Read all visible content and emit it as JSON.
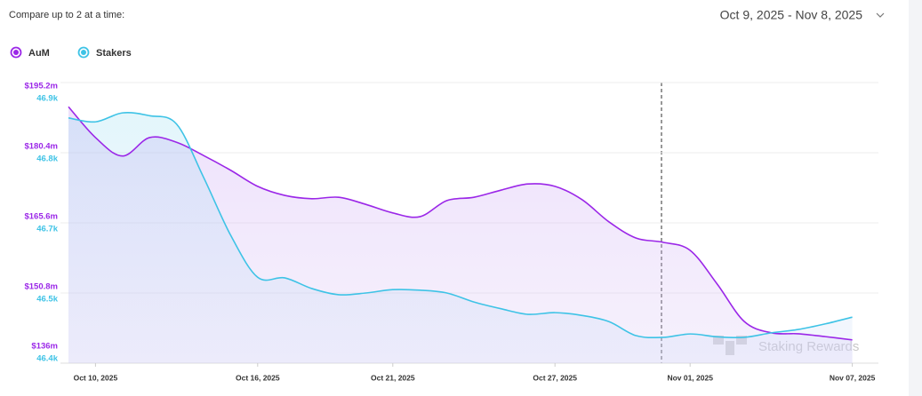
{
  "header": {
    "compare_note": "Compare up to 2 at a time:",
    "date_range": "Oct 9, 2025 - Nov 8, 2025"
  },
  "chart_data": {
    "type": "line",
    "watermark": "Staking Rewards",
    "categories": [
      null,
      "Oct 10, 2025",
      null,
      null,
      null,
      null,
      null,
      "Oct 16, 2025",
      null,
      null,
      null,
      null,
      "Oct 21, 2025",
      null,
      null,
      null,
      null,
      null,
      "Oct 27, 2025",
      null,
      null,
      null,
      null,
      "Nov 01, 2025",
      null,
      null,
      null,
      null,
      null,
      "Nov 07, 2025"
    ],
    "series": [
      {
        "name": "AuM",
        "color": "#9b27e8",
        "values": [
          190100000,
          183600000,
          179700000,
          183600000,
          182600000,
          179800000,
          176700000,
          173300000,
          171400000,
          170700000,
          171000000,
          169500000,
          167700000,
          166900000,
          170300000,
          171000000,
          172500000,
          173800000,
          173300000,
          170500000,
          165800000,
          162400000,
          161500000,
          159800000,
          152700000,
          144800000,
          142400000,
          142200000,
          141600000,
          140900000
        ]
      },
      {
        "name": "Stakers",
        "color": "#3ec3e6",
        "axis": "y2",
        "values": [
          46837,
          46830,
          46846,
          46841,
          46826,
          46731,
          46628,
          46553,
          46552,
          46533,
          46522,
          46525,
          46531,
          46530,
          46525,
          46509,
          46497,
          46487,
          46490,
          46485,
          46474,
          46449,
          46446,
          46452,
          46447,
          46446,
          46454,
          46460,
          46470,
          46482
        ]
      }
    ],
    "ylim": [
      136000000,
      195200000
    ],
    "yticks": [
      {
        "value": 136000000,
        "label": "$136m"
      },
      {
        "value": 150800000,
        "label": "$150.8m"
      },
      {
        "value": 165600000,
        "label": "$165.6m"
      },
      {
        "value": 180400000,
        "label": "$180.4m"
      },
      {
        "value": 195200000,
        "label": "$195.2m"
      }
    ],
    "y2lim": [
      46400,
      46900
    ],
    "y2ticks": [
      {
        "value": 46400,
        "label": "46.4k"
      },
      {
        "value": 46525,
        "label": "46.5k"
      },
      {
        "value": 46650,
        "label": "46.7k"
      },
      {
        "value": 46775,
        "label": "46.8k"
      },
      {
        "value": 46900,
        "label": "46.9k"
      }
    ],
    "grid": true
  }
}
